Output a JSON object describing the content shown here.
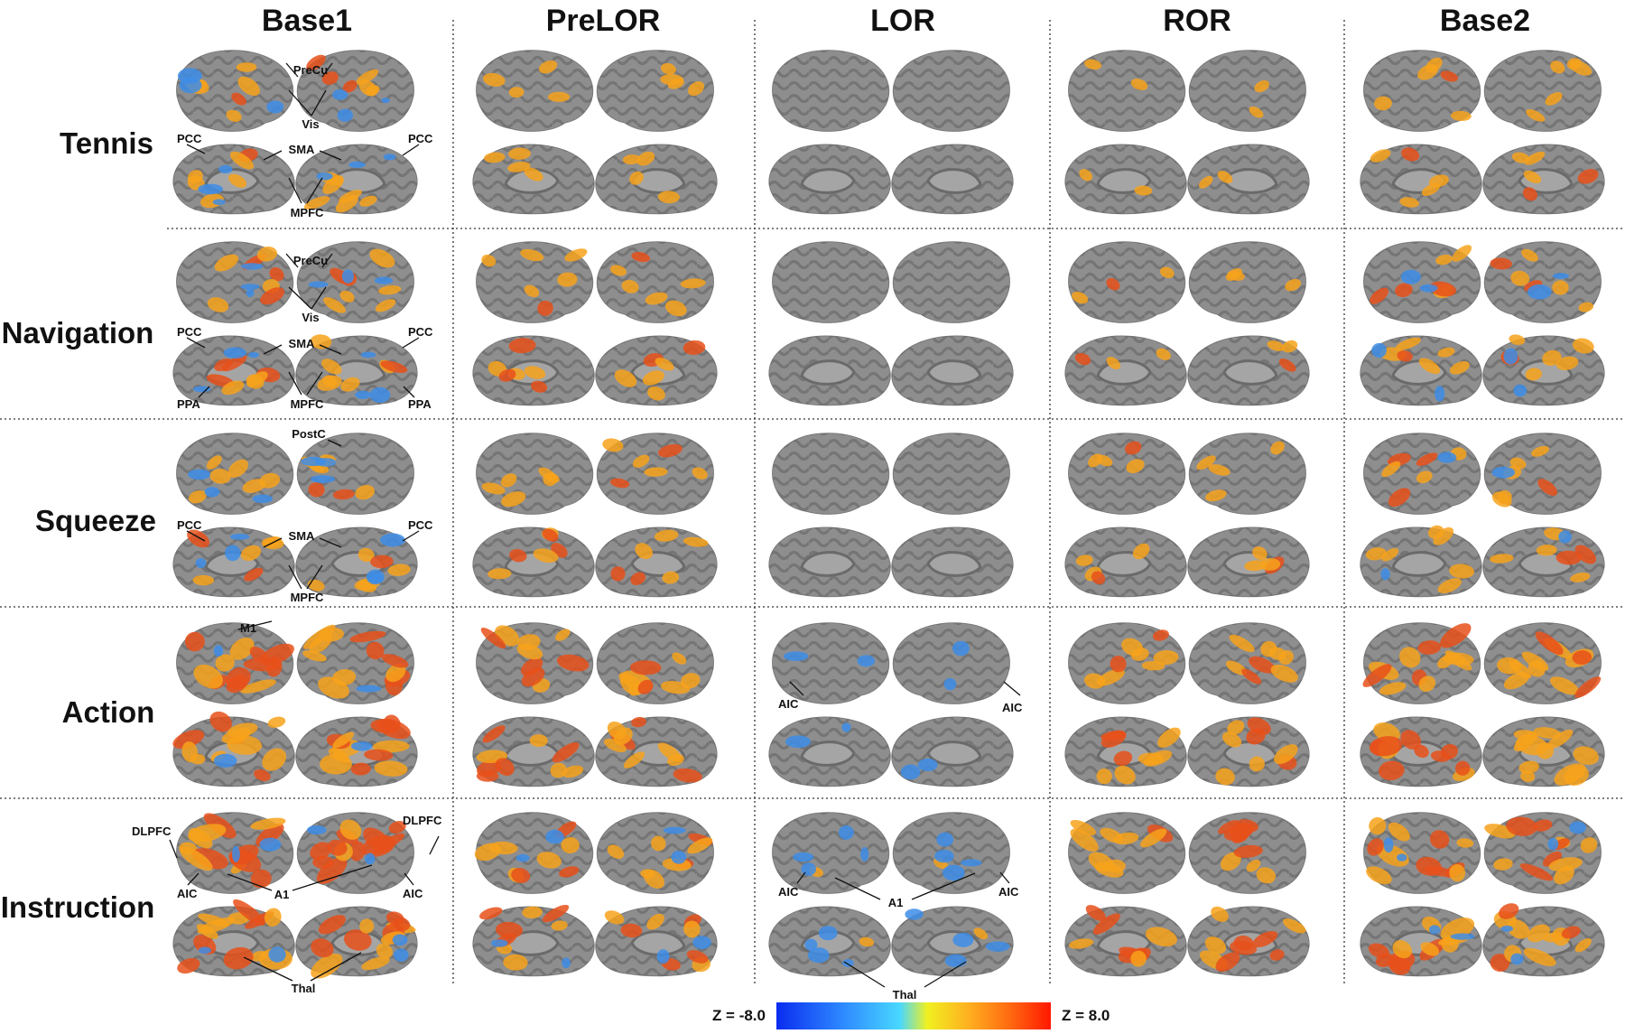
{
  "columns": [
    {
      "id": "base1",
      "label": "Base1"
    },
    {
      "id": "prelor",
      "label": "PreLOR"
    },
    {
      "id": "lor",
      "label": "LOR"
    },
    {
      "id": "ror",
      "label": "ROR"
    },
    {
      "id": "base2",
      "label": "Base2"
    }
  ],
  "rows": [
    {
      "id": "tennis",
      "label": "Tennis",
      "act": [
        0.45,
        0.32,
        0.0,
        0.12,
        0.35
      ],
      "deact": [
        0.3,
        0.0,
        0.0,
        0.0,
        0.0
      ]
    },
    {
      "id": "navigation",
      "label": "Navigation",
      "act": [
        0.5,
        0.45,
        0.0,
        0.18,
        0.45
      ],
      "deact": [
        0.3,
        0.0,
        0.0,
        0.0,
        0.15
      ]
    },
    {
      "id": "squeeze",
      "label": "Squeeze",
      "act": [
        0.42,
        0.4,
        0.0,
        0.3,
        0.4
      ],
      "deact": [
        0.3,
        0.0,
        0.0,
        0.02,
        0.05
      ]
    },
    {
      "id": "action",
      "label": "Action",
      "act": [
        0.85,
        0.65,
        0.0,
        0.6,
        0.75
      ],
      "deact": [
        0.1,
        0.0,
        0.15,
        0.0,
        0.02
      ]
    },
    {
      "id": "instruction",
      "label": "Instruction",
      "act": [
        0.88,
        0.55,
        0.05,
        0.65,
        0.75
      ],
      "deact": [
        0.2,
        0.15,
        0.35,
        0.0,
        0.2
      ]
    }
  ],
  "annotations": [
    {
      "id": "precu-tennis",
      "text": "PreCu"
    },
    {
      "id": "vis-tennis",
      "text": "Vis"
    },
    {
      "id": "pcc-tennis-l",
      "text": "PCC"
    },
    {
      "id": "sma-tennis",
      "text": "SMA"
    },
    {
      "id": "pcc-tennis-r",
      "text": "PCC"
    },
    {
      "id": "mpfc-tennis",
      "text": "MPFC"
    },
    {
      "id": "precu-nav",
      "text": "PreCu"
    },
    {
      "id": "vis-nav",
      "text": "Vis"
    },
    {
      "id": "pcc-nav-l",
      "text": "PCC"
    },
    {
      "id": "sma-nav",
      "text": "SMA"
    },
    {
      "id": "pcc-nav-r",
      "text": "PCC"
    },
    {
      "id": "ppa-nav-l",
      "text": "PPA"
    },
    {
      "id": "mpfc-nav",
      "text": "MPFC"
    },
    {
      "id": "ppa-nav-r",
      "text": "PPA"
    },
    {
      "id": "postc-squeeze",
      "text": "PostC"
    },
    {
      "id": "pcc-squeeze-l",
      "text": "PCC"
    },
    {
      "id": "sma-squeeze",
      "text": "SMA"
    },
    {
      "id": "pcc-squeeze-r",
      "text": "PCC"
    },
    {
      "id": "mpfc-squeeze",
      "text": "MPFC"
    },
    {
      "id": "m1-action",
      "text": "M1"
    },
    {
      "id": "aic-action-l",
      "text": "AIC"
    },
    {
      "id": "aic-action-r",
      "text": "AIC"
    },
    {
      "id": "dlpfc-instr-l",
      "text": "DLPFC"
    },
    {
      "id": "dlpfc-instr-r",
      "text": "DLPFC"
    },
    {
      "id": "aic-instr-l",
      "text": "AIC"
    },
    {
      "id": "a1-instr",
      "text": "A1"
    },
    {
      "id": "aic-instr-r",
      "text": "AIC"
    },
    {
      "id": "thal-instr",
      "text": "Thal"
    },
    {
      "id": "aic-instr-lor-l",
      "text": "AIC"
    },
    {
      "id": "a1-instr-lor",
      "text": "A1"
    },
    {
      "id": "aic-instr-lor-r",
      "text": "AIC"
    },
    {
      "id": "thal-instr-lor",
      "text": "Thal"
    }
  ],
  "colorbar": {
    "min_label": "Z = -8.0",
    "max_label": "Z = 8.0",
    "min": -8.0,
    "max": 8.0,
    "stops": [
      "#0a2cf0",
      "#2f8cff",
      "#48d8ff",
      "#f0f020",
      "#ffb020",
      "#ff6a10",
      "#ff1800"
    ]
  },
  "colors": {
    "brain_base": "#8e8e8e",
    "sulcus": "#5f5f5f",
    "activation_light": "#f7a21b",
    "activation_dark": "#e8501a",
    "deactivation": "#3d8de8"
  }
}
